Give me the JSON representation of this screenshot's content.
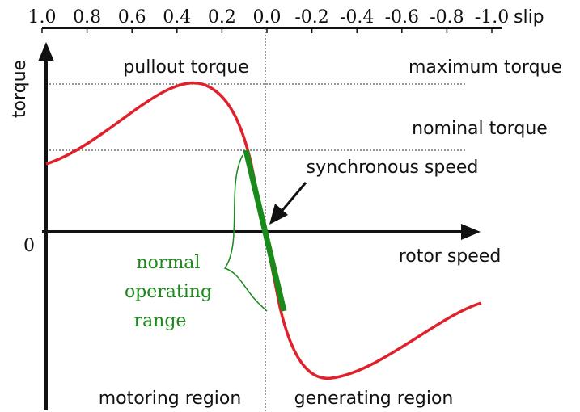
{
  "slip_axis": {
    "label": "slip",
    "ticks": [
      "1.0",
      "0.8",
      "0.6",
      "0.4",
      "0.2",
      "0.0",
      "-0.2",
      "-0.4",
      "-0.6",
      "-0.8",
      "-1.0"
    ]
  },
  "axes": {
    "y_label": "torque",
    "origin": "0",
    "x_label": "rotor speed"
  },
  "annotations": {
    "pullout": "pullout torque",
    "maximum": "maximum torque",
    "nominal": "nominal torque",
    "synchronous": "synchronous speed"
  },
  "range_label": [
    "normal",
    "operating",
    "range"
  ],
  "regions": [
    "motoring region",
    "generating region"
  ]
}
